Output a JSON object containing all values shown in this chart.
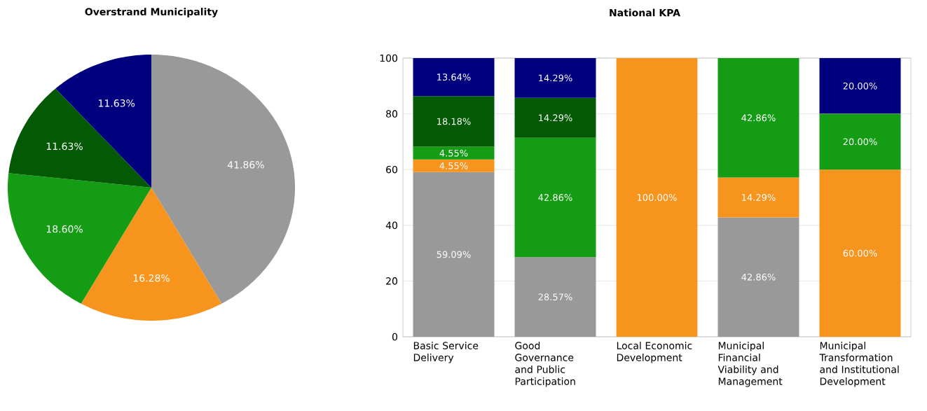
{
  "chart_data": [
    {
      "type": "pie",
      "title": "Overstrand Municipality",
      "categories": [
        null,
        null,
        null,
        null,
        null
      ],
      "values": [
        41.86,
        16.28,
        18.6,
        11.63,
        11.63
      ],
      "colors": [
        "#999999",
        "#f7941d",
        "#149c14",
        "#045a04",
        "#00007f"
      ],
      "value_labels": [
        "41.86%",
        "16.28%",
        "18.60%",
        "11.63%",
        "11.63%"
      ]
    },
    {
      "type": "bar",
      "title": "National KPA",
      "stacked": true,
      "categories": [
        "Basic Service Delivery",
        "Good Governance and Public Participation",
        "Local Economic Development",
        "Municipal Financial Viability and Management",
        "Municipal Transformation and Institutional Development"
      ],
      "ylim": [
        0,
        100
      ],
      "yticks": [
        0,
        20,
        40,
        60,
        80,
        100
      ],
      "grid": "y",
      "series": [
        {
          "color": "#999999",
          "values": [
            59.09,
            28.57,
            null,
            42.86,
            null
          ],
          "value_labels": [
            "59.09%",
            "28.57%",
            null,
            "42.86%",
            null
          ]
        },
        {
          "color": "#f7941d",
          "values": [
            4.55,
            null,
            100,
            14.29,
            60
          ],
          "value_labels": [
            "4.55%",
            null,
            "100.00%",
            "14.29%",
            "60.00%"
          ]
        },
        {
          "color": "#149c14",
          "values": [
            4.55,
            42.86,
            null,
            42.86,
            20
          ],
          "value_labels": [
            "4.55%",
            "42.86%",
            null,
            "42.86%",
            "20.00%"
          ]
        },
        {
          "color": "#045a04",
          "values": [
            18.18,
            14.29,
            null,
            null,
            null
          ],
          "value_labels": [
            "18.18%",
            "14.29%",
            null,
            null,
            null
          ]
        },
        {
          "color": "#00007f",
          "values": [
            13.64,
            14.29,
            null,
            null,
            20
          ],
          "value_labels": [
            "13.64%",
            "14.29%",
            null,
            null,
            "20.00%"
          ]
        }
      ]
    }
  ]
}
